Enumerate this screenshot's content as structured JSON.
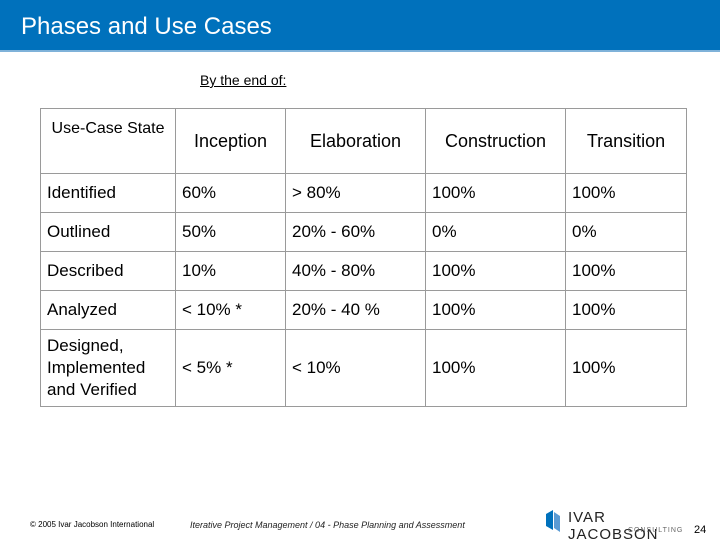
{
  "header": {
    "title": "Phases and Use Cases"
  },
  "subtitle": "By the end of:",
  "table": {
    "columns": [
      "Use-Case State",
      "Inception",
      "Elaboration",
      "Construction",
      "Transition"
    ],
    "rows": [
      [
        "Identified",
        "60%",
        "> 80%",
        "100%",
        "100%"
      ],
      [
        "Outlined",
        "50%",
        "20% - 60%",
        "0%",
        "0%"
      ],
      [
        "Described",
        "10%",
        "40% - 80%",
        "100%",
        "100%"
      ],
      [
        "Analyzed",
        "< 10% *",
        "20% - 40 %",
        "100%",
        "100%"
      ],
      [
        "Designed, Implemented and Verified",
        "< 5% *",
        "< 10%",
        "100%",
        "100%"
      ]
    ]
  },
  "footer": {
    "copyright": "© 2005 Ivar Jacobson International",
    "course": "Iterative Project Management / 04 - Phase Planning and Assessment",
    "logo_name": "IVAR JACOBSON",
    "logo_sub": "CONSULTING",
    "page": "24"
  }
}
